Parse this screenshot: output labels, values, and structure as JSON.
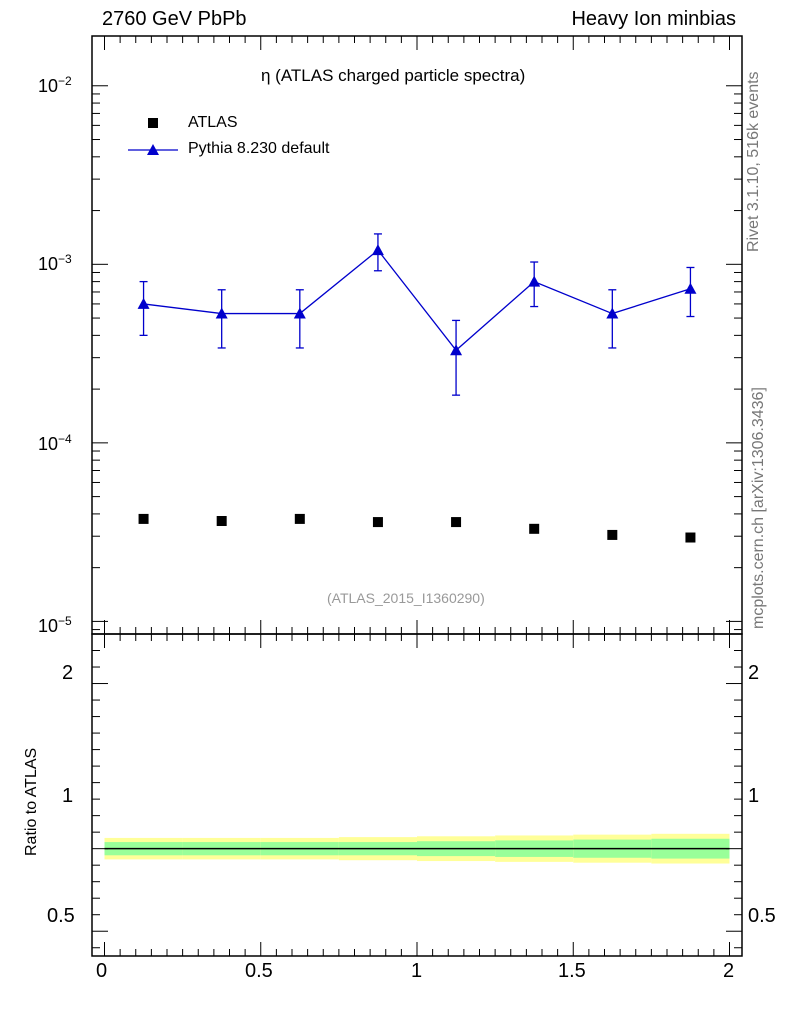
{
  "header": {
    "left": "2760 GeV PbPb",
    "right": "Heavy Ion minbias"
  },
  "side": {
    "rivet": "Rivet 3.1.10,  516k events",
    "mcplots": "mcplots.cern.ch [arXiv:1306.3436]"
  },
  "plot_title": "η (ATLAS charged particle spectra)",
  "analysis_tag": "(ATLAS_2015_I1360290)",
  "colors": {
    "mc": "#0000cc",
    "band_inner": "#99ff99",
    "band_outer": "#ffff99",
    "data": "#000000"
  },
  "chart_data": [
    {
      "type": "scatter",
      "panel": "main",
      "yscale": "log",
      "ylim": [
        8.5e-06,
        0.019
      ],
      "xlim": [
        -0.04,
        2.04
      ],
      "yticklabels": [
        "10^-5",
        "10^-4",
        "10^-3",
        "10^-2"
      ],
      "legend_position": "top-left",
      "series": [
        {
          "name": "ATLAS",
          "marker": "square",
          "x": [
            0.125,
            0.375,
            0.625,
            0.875,
            1.125,
            1.375,
            1.625,
            1.875
          ],
          "y": [
            3.75e-05,
            3.65e-05,
            3.75e-05,
            3.6e-05,
            3.6e-05,
            3.3e-05,
            3.05e-05,
            2.95e-05
          ]
        },
        {
          "name": "Pythia 8.230 default",
          "marker": "triangle",
          "line": true,
          "x": [
            0.125,
            0.375,
            0.625,
            0.875,
            1.125,
            1.375,
            1.625,
            1.875
          ],
          "y": [
            0.0006,
            0.00053,
            0.00053,
            0.0012,
            0.00033,
            0.0008,
            0.00053,
            0.00073
          ],
          "yerr_low": [
            0.0002,
            0.00019,
            0.00019,
            0.00028,
            0.000145,
            0.00022,
            0.00019,
            0.00022
          ],
          "yerr_high": [
            0.0002,
            0.00019,
            0.00019,
            0.00028,
            0.000155,
            0.00023,
            0.00019,
            0.00023
          ]
        }
      ]
    },
    {
      "type": "area",
      "panel": "ratio",
      "ylabel": "Ratio to ATLAS",
      "ylim": [
        0.35,
        2.3
      ],
      "xlim": [
        -0.04,
        2.04
      ],
      "yticklabels": [
        "0.5",
        "1",
        "2"
      ],
      "xticklabels": [
        "0",
        "0.5",
        "1",
        "1.5",
        "2"
      ],
      "bins": [
        0,
        0.25,
        0.5,
        0.75,
        1.0,
        1.25,
        1.5,
        1.75,
        2.0
      ],
      "band_inner": [
        0.04,
        0.04,
        0.04,
        0.04,
        0.045,
        0.05,
        0.055,
        0.06
      ],
      "band_outer": [
        0.065,
        0.065,
        0.065,
        0.07,
        0.075,
        0.08,
        0.085,
        0.09
      ],
      "reference": 1
    }
  ]
}
